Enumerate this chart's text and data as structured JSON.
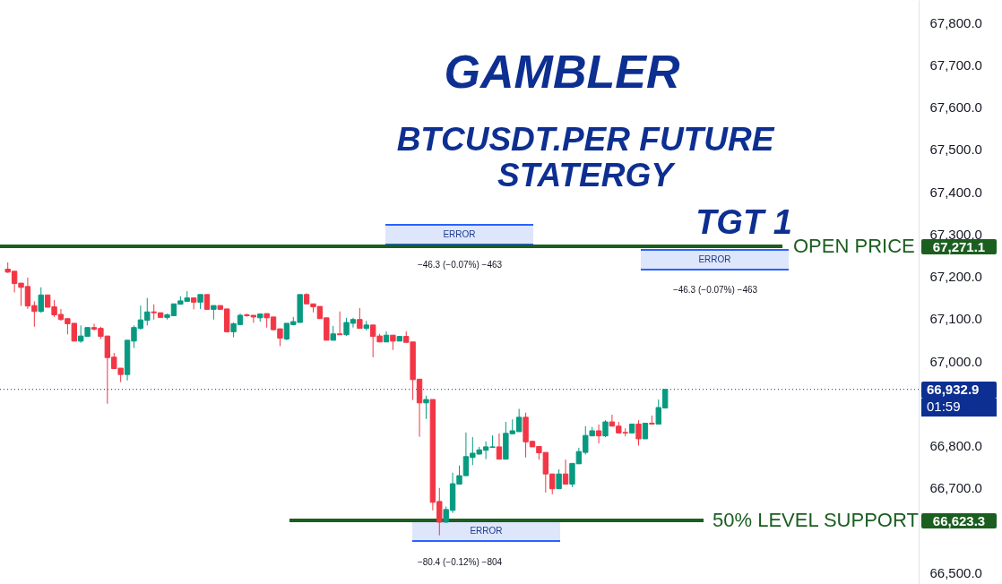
{
  "chart_data": {
    "type": "candlestick",
    "title": "GAMBLER",
    "subtitle": "BTCUSDT.PER FUTURE STATERGY",
    "categories": [
      null,
      null,
      null,
      null,
      null,
      null,
      null,
      null,
      null,
      null,
      null,
      null,
      null,
      null,
      null,
      null,
      null,
      null,
      null,
      null,
      null,
      null,
      null,
      null,
      null,
      null,
      null,
      null,
      null,
      null,
      null,
      null,
      null,
      null,
      null,
      null,
      null,
      null,
      null,
      null,
      null,
      null,
      null,
      null,
      null,
      null,
      null,
      null,
      null,
      null,
      null,
      null,
      null,
      null,
      null,
      null,
      null,
      null,
      null,
      null,
      null,
      null,
      null,
      null,
      null,
      null,
      null,
      null,
      null,
      null,
      null,
      null,
      null,
      null,
      null,
      null,
      null,
      null,
      null,
      null,
      null,
      null,
      null,
      null,
      null,
      null,
      null,
      null,
      null,
      null,
      null,
      null,
      null,
      null,
      null,
      null,
      null,
      null,
      null,
      null,
      null,
      null,
      null,
      null,
      null,
      null,
      null,
      null,
      null,
      null,
      null,
      null,
      null,
      null,
      null,
      null,
      null,
      null,
      null,
      null,
      null,
      null,
      null,
      null,
      null,
      null,
      null,
      null,
      null,
      null,
      null,
      null,
      null,
      null,
      null,
      null,
      null
    ],
    "ohlc": [
      [
        67217,
        67233,
        67208,
        67210
      ],
      [
        67212,
        67212,
        67162,
        67183
      ],
      [
        67184,
        67184,
        67130,
        67174
      ],
      [
        67176,
        67197,
        67123,
        67130
      ],
      [
        67131,
        67141,
        67081,
        67117
      ],
      [
        67117,
        67174,
        67114,
        67156
      ],
      [
        67156,
        67156,
        67127,
        67127
      ],
      [
        67128,
        67144,
        67104,
        67109
      ],
      [
        67110,
        67123,
        67095,
        67098
      ],
      [
        67100,
        67100,
        67063,
        67088
      ],
      [
        67089,
        67089,
        67047,
        67047
      ],
      [
        67047,
        67084,
        67043,
        67059
      ],
      [
        67058,
        67079,
        67058,
        67079
      ],
      [
        67079,
        67088,
        67072,
        67075
      ],
      [
        67077,
        67081,
        67052,
        67058
      ],
      [
        67059,
        67059,
        66899,
        67008
      ],
      [
        67009,
        67019,
        66982,
        66982
      ],
      [
        66983,
        66983,
        66950,
        66968
      ],
      [
        66968,
        67049,
        66954,
        67049
      ],
      [
        67047,
        67084,
        67031,
        67079
      ],
      [
        67077,
        67131,
        67074,
        67097
      ],
      [
        67096,
        67149,
        67084,
        67116
      ],
      [
        67116,
        67134,
        67098,
        67114
      ],
      [
        67114,
        67114,
        67103,
        67103
      ],
      [
        67103,
        67112,
        67098,
        67109
      ],
      [
        67107,
        67135,
        67107,
        67135
      ],
      [
        67134,
        67153,
        67134,
        67142
      ],
      [
        67141,
        67165,
        67141,
        67149
      ],
      [
        67149,
        67149,
        67122,
        67139
      ],
      [
        67139,
        67157,
        67123,
        67157
      ],
      [
        67157,
        67157,
        67122,
        67122
      ],
      [
        67122,
        67131,
        67098,
        67131
      ],
      [
        67131,
        67131,
        67122,
        67122
      ],
      [
        67123,
        67123,
        67069,
        67069
      ],
      [
        67069,
        67091,
        67056,
        67088
      ],
      [
        67086,
        67112,
        67086,
        67108
      ],
      [
        67109,
        67112,
        67105,
        67107
      ],
      [
        67108,
        67108,
        67090,
        67104
      ],
      [
        67102,
        67112,
        67093,
        67111
      ],
      [
        67112,
        67112,
        67079,
        67102
      ],
      [
        67104,
        67104,
        67072,
        67074
      ],
      [
        67076,
        67076,
        67035,
        67054
      ],
      [
        67052,
        67089,
        67049,
        67089
      ],
      [
        67086,
        67104,
        67084,
        67093
      ],
      [
        67091,
        67157,
        67091,
        67157
      ],
      [
        67157,
        67160,
        67135,
        67135
      ],
      [
        67135,
        67135,
        67115,
        67128
      ],
      [
        67129,
        67129,
        67100,
        67100
      ],
      [
        67102,
        67102,
        67049,
        67049
      ],
      [
        67049,
        67083,
        67049,
        67064
      ],
      [
        67064,
        67117,
        67062,
        67062
      ],
      [
        67062,
        67102,
        67059,
        67091
      ],
      [
        67089,
        67102,
        67079,
        67098
      ],
      [
        67098,
        67125,
        67077,
        67077
      ],
      [
        67077,
        67095,
        67072,
        67085
      ],
      [
        67085,
        67085,
        67009,
        67058
      ],
      [
        67059,
        67064,
        67045,
        67045
      ],
      [
        67045,
        67070,
        67045,
        67061
      ],
      [
        67061,
        67061,
        67026,
        67047
      ],
      [
        67047,
        67059,
        67047,
        67058
      ],
      [
        67058,
        67070,
        67044,
        67044
      ],
      [
        67045,
        67045,
        66908,
        66956
      ],
      [
        66957,
        66957,
        66821,
        66901
      ],
      [
        66901,
        66918,
        66863,
        66909
      ],
      [
        66909,
        66909,
        66647,
        66666
      ],
      [
        66668,
        66700,
        66588,
        66619
      ],
      [
        66619,
        66656,
        66619,
        66649
      ],
      [
        66647,
        66736,
        66641,
        66710
      ],
      [
        66709,
        66753,
        66709,
        66729
      ],
      [
        66729,
        66831,
        66729,
        66774
      ],
      [
        66772,
        66820,
        66754,
        66782
      ],
      [
        66780,
        66797,
        66779,
        66790
      ],
      [
        66789,
        66810,
        66768,
        66797
      ],
      [
        66796,
        66824,
        66796,
        66797
      ],
      [
        66797,
        66829,
        66768,
        66768
      ],
      [
        66768,
        66856,
        66768,
        66829
      ],
      [
        66828,
        66862,
        66828,
        66835
      ],
      [
        66833,
        66887,
        66833,
        66867
      ],
      [
        66867,
        66878,
        66772,
        66809
      ],
      [
        66810,
        66812,
        66797,
        66797
      ],
      [
        66798,
        66798,
        66767,
        66783
      ],
      [
        66784,
        66784,
        66689,
        66733
      ],
      [
        66733,
        66733,
        66685,
        66698
      ],
      [
        66698,
        66744,
        66698,
        66733
      ],
      [
        66733,
        66767,
        66709,
        66709
      ],
      [
        66709,
        66758,
        66702,
        66758
      ],
      [
        66757,
        66795,
        66757,
        66786
      ],
      [
        66784,
        66846,
        66779,
        66824
      ],
      [
        66823,
        66844,
        66823,
        66835
      ],
      [
        66835,
        66850,
        66805,
        66823
      ],
      [
        66823,
        66860,
        66820,
        66856
      ],
      [
        66856,
        66873,
        66846,
        66846
      ],
      [
        66846,
        66856,
        66830,
        66830
      ],
      [
        66831,
        66841,
        66822,
        66830
      ],
      [
        66830,
        66851,
        66830,
        66851
      ],
      [
        66851,
        66860,
        66800,
        66816
      ],
      [
        66816,
        66853,
        66816,
        66853
      ],
      [
        66853,
        66871,
        66851,
        66851
      ],
      [
        66851,
        66909,
        66851,
        66890
      ],
      [
        66889,
        66932.9,
        66889,
        66932.9
      ],
      null,
      null,
      null,
      null,
      null,
      null,
      null,
      null,
      null,
      null,
      null,
      null,
      null,
      null,
      null,
      null,
      null,
      null,
      null,
      null,
      null,
      null,
      null,
      null,
      null,
      null,
      null,
      null,
      null,
      null,
      null,
      null,
      null,
      null,
      null,
      null,
      null
    ],
    "ylim": [
      66473,
      67853
    ],
    "yticks": [
      {
        "value": 66500,
        "label": "66,500.0"
      },
      {
        "value": 66700,
        "label": "66,700.0"
      },
      {
        "value": 66800,
        "label": "66,800.0"
      },
      {
        "value": 67000,
        "label": "67,000.0"
      },
      {
        "value": 67100,
        "label": "67,100.0"
      },
      {
        "value": 67200,
        "label": "67,200.0"
      },
      {
        "value": 67300,
        "label": "67,300.0"
      },
      {
        "value": 67400,
        "label": "67,400.0"
      },
      {
        "value": 67500,
        "label": "67,500.0"
      },
      {
        "value": 67600,
        "label": "67,600.0"
      },
      {
        "value": 67700,
        "label": "67,700.0"
      },
      {
        "value": 67800,
        "label": "67,800.0"
      }
    ],
    "ref_lines": [
      {
        "axis": "y",
        "value": 67271.1,
        "label": "OPEN PRICE",
        "color": "#1b5e20"
      },
      {
        "axis": "y",
        "value": 66623.3,
        "label": "50% LEVEL SUPPORT",
        "color": "#1b5e20"
      },
      {
        "axis": "y",
        "value": 66932.9,
        "color": "#0d2f91",
        "line_style": "dotted"
      }
    ],
    "annotations": [
      "TGT 1",
      "ERROR",
      "−46.3 (−0.07%) −463",
      "ERROR",
      "−46.3 (−0.07%) −463",
      "ERROR",
      "−80.4 (−0.12%) −804",
      "67,271.1",
      "66,623.3",
      "66,932.9",
      "01:59"
    ]
  }
}
